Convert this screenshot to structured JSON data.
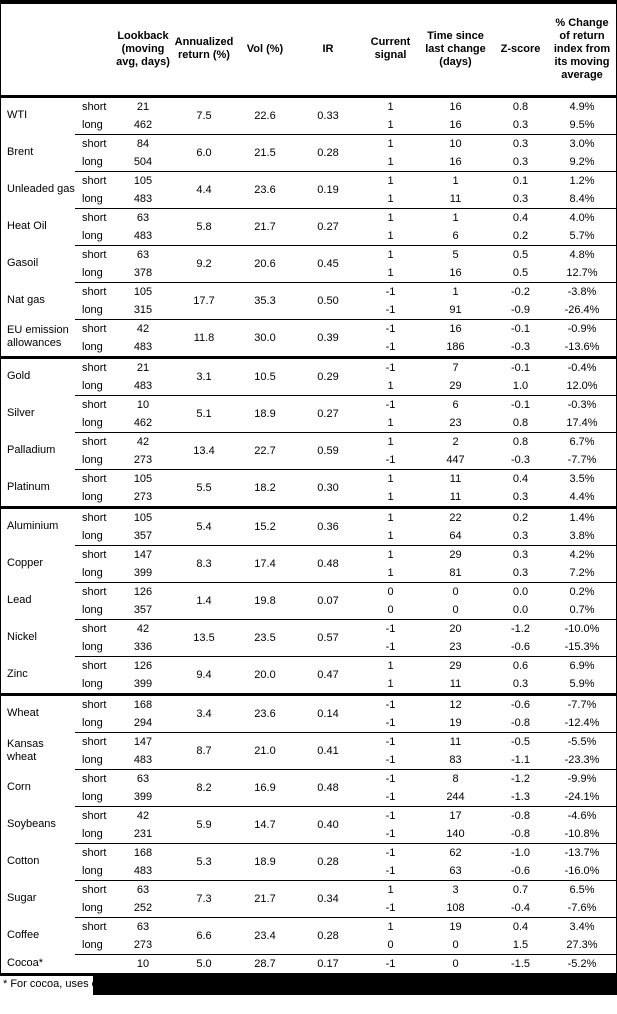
{
  "table": {
    "headers": [
      {
        "id": "commodity",
        "label": ""
      },
      {
        "id": "horizon",
        "label": ""
      },
      {
        "id": "lookback",
        "label": "Lookback (moving avg, days)"
      },
      {
        "id": "annualized-return",
        "label": "Annualized return (%)"
      },
      {
        "id": "vol",
        "label": "Vol (%)"
      },
      {
        "id": "ir",
        "label": "IR"
      },
      {
        "id": "current-signal",
        "label": "Current signal"
      },
      {
        "id": "time-since-last-change",
        "label": "Time since last change (days)"
      },
      {
        "id": "z-score",
        "label": "Z-score"
      },
      {
        "id": "pct-change",
        "label": "% Change of return index from its moving average"
      }
    ],
    "sections": [
      {
        "commodities": [
          {
            "name": "WTI",
            "annualized": "7.5",
            "vol": "22.6",
            "ir": "0.33",
            "rows": [
              {
                "horizon": "short",
                "lookback": "21",
                "signal": "1",
                "days": "16",
                "z": "0.8",
                "change": "4.9%"
              },
              {
                "horizon": "long",
                "lookback": "462",
                "signal": "1",
                "days": "16",
                "z": "0.3",
                "change": "9.5%"
              }
            ]
          },
          {
            "name": "Brent",
            "annualized": "6.0",
            "vol": "21.5",
            "ir": "0.28",
            "rows": [
              {
                "horizon": "short",
                "lookback": "84",
                "signal": "1",
                "days": "10",
                "z": "0.3",
                "change": "3.0%"
              },
              {
                "horizon": "long",
                "lookback": "504",
                "signal": "1",
                "days": "16",
                "z": "0.3",
                "change": "9.2%"
              }
            ]
          },
          {
            "name": "Unleaded gas",
            "annualized": "4.4",
            "vol": "23.6",
            "ir": "0.19",
            "rows": [
              {
                "horizon": "short",
                "lookback": "105",
                "signal": "1",
                "days": "1",
                "z": "0.1",
                "change": "1.2%"
              },
              {
                "horizon": "long",
                "lookback": "483",
                "signal": "1",
                "days": "11",
                "z": "0.3",
                "change": "8.4%"
              }
            ]
          },
          {
            "name": "Heat Oil",
            "annualized": "5.8",
            "vol": "21.7",
            "ir": "0.27",
            "rows": [
              {
                "horizon": "short",
                "lookback": "63",
                "signal": "1",
                "days": "1",
                "z": "0.4",
                "change": "4.0%"
              },
              {
                "horizon": "long",
                "lookback": "483",
                "signal": "1",
                "days": "6",
                "z": "0.2",
                "change": "5.7%"
              }
            ]
          },
          {
            "name": "Gasoil",
            "annualized": "9.2",
            "vol": "20.6",
            "ir": "0.45",
            "rows": [
              {
                "horizon": "short",
                "lookback": "63",
                "signal": "1",
                "days": "5",
                "z": "0.5",
                "change": "4.8%"
              },
              {
                "horizon": "long",
                "lookback": "378",
                "signal": "1",
                "days": "16",
                "z": "0.5",
                "change": "12.7%"
              }
            ]
          },
          {
            "name": "Nat gas",
            "annualized": "17.7",
            "vol": "35.3",
            "ir": "0.50",
            "rows": [
              {
                "horizon": "short",
                "lookback": "105",
                "signal": "-1",
                "days": "1",
                "z": "-0.2",
                "change": "-3.8%"
              },
              {
                "horizon": "long",
                "lookback": "315",
                "signal": "-1",
                "days": "91",
                "z": "-0.9",
                "change": "-26.4%"
              }
            ]
          },
          {
            "name": "EU emission allowances",
            "annualized": "11.8",
            "vol": "30.0",
            "ir": "0.39",
            "rows": [
              {
                "horizon": "short",
                "lookback": "42",
                "signal": "-1",
                "days": "16",
                "z": "-0.1",
                "change": "-0.9%"
              },
              {
                "horizon": "long",
                "lookback": "483",
                "signal": "-1",
                "days": "186",
                "z": "-0.3",
                "change": "-13.6%"
              }
            ]
          }
        ]
      },
      {
        "commodities": [
          {
            "name": "Gold",
            "annualized": "3.1",
            "vol": "10.5",
            "ir": "0.29",
            "rows": [
              {
                "horizon": "short",
                "lookback": "21",
                "signal": "-1",
                "days": "7",
                "z": "-0.1",
                "change": "-0.4%"
              },
              {
                "horizon": "long",
                "lookback": "483",
                "signal": "1",
                "days": "29",
                "z": "1.0",
                "change": "12.0%"
              }
            ]
          },
          {
            "name": "Silver",
            "annualized": "5.1",
            "vol": "18.9",
            "ir": "0.27",
            "rows": [
              {
                "horizon": "short",
                "lookback": "10",
                "signal": "-1",
                "days": "6",
                "z": "-0.1",
                "change": "-0.3%"
              },
              {
                "horizon": "long",
                "lookback": "462",
                "signal": "1",
                "days": "23",
                "z": "0.8",
                "change": "17.4%"
              }
            ]
          },
          {
            "name": "Palladium",
            "annualized": "13.4",
            "vol": "22.7",
            "ir": "0.59",
            "rows": [
              {
                "horizon": "short",
                "lookback": "42",
                "signal": "1",
                "days": "2",
                "z": "0.8",
                "change": "6.7%"
              },
              {
                "horizon": "long",
                "lookback": "273",
                "signal": "-1",
                "days": "447",
                "z": "-0.3",
                "change": "-7.7%"
              }
            ]
          },
          {
            "name": "Platinum",
            "annualized": "5.5",
            "vol": "18.2",
            "ir": "0.30",
            "rows": [
              {
                "horizon": "short",
                "lookback": "105",
                "signal": "1",
                "days": "11",
                "z": "0.4",
                "change": "3.5%"
              },
              {
                "horizon": "long",
                "lookback": "273",
                "signal": "1",
                "days": "11",
                "z": "0.3",
                "change": "4.4%"
              }
            ]
          }
        ]
      },
      {
        "commodities": [
          {
            "name": "Aluminium",
            "annualized": "5.4",
            "vol": "15.2",
            "ir": "0.36",
            "rows": [
              {
                "horizon": "short",
                "lookback": "105",
                "signal": "1",
                "days": "22",
                "z": "0.2",
                "change": "1.4%"
              },
              {
                "horizon": "long",
                "lookback": "357",
                "signal": "1",
                "days": "64",
                "z": "0.3",
                "change": "3.8%"
              }
            ]
          },
          {
            "name": "Copper",
            "annualized": "8.3",
            "vol": "17.4",
            "ir": "0.48",
            "rows": [
              {
                "horizon": "short",
                "lookback": "147",
                "signal": "1",
                "days": "29",
                "z": "0.3",
                "change": "4.2%"
              },
              {
                "horizon": "long",
                "lookback": "399",
                "signal": "1",
                "days": "81",
                "z": "0.3",
                "change": "7.2%"
              }
            ]
          },
          {
            "name": "Lead",
            "annualized": "1.4",
            "vol": "19.8",
            "ir": "0.07",
            "rows": [
              {
                "horizon": "short",
                "lookback": "126",
                "signal": "0",
                "days": "0",
                "z": "0.0",
                "change": "0.2%"
              },
              {
                "horizon": "long",
                "lookback": "357",
                "signal": "0",
                "days": "0",
                "z": "0.0",
                "change": "0.7%"
              }
            ]
          },
          {
            "name": "Nickel",
            "annualized": "13.5",
            "vol": "23.5",
            "ir": "0.57",
            "rows": [
              {
                "horizon": "short",
                "lookback": "42",
                "signal": "-1",
                "days": "20",
                "z": "-1.2",
                "change": "-10.0%"
              },
              {
                "horizon": "long",
                "lookback": "336",
                "signal": "-1",
                "days": "23",
                "z": "-0.6",
                "change": "-15.3%"
              }
            ]
          },
          {
            "name": "Zinc",
            "annualized": "9.4",
            "vol": "20.0",
            "ir": "0.47",
            "rows": [
              {
                "horizon": "short",
                "lookback": "126",
                "signal": "1",
                "days": "29",
                "z": "0.6",
                "change": "6.9%"
              },
              {
                "horizon": "long",
                "lookback": "399",
                "signal": "1",
                "days": "11",
                "z": "0.3",
                "change": "5.9%"
              }
            ]
          }
        ]
      },
      {
        "commodities": [
          {
            "name": "Wheat",
            "annualized": "3.4",
            "vol": "23.6",
            "ir": "0.14",
            "rows": [
              {
                "horizon": "short",
                "lookback": "168",
                "signal": "-1",
                "days": "12",
                "z": "-0.6",
                "change": "-7.7%"
              },
              {
                "horizon": "long",
                "lookback": "294",
                "signal": "-1",
                "days": "19",
                "z": "-0.8",
                "change": "-12.4%"
              }
            ]
          },
          {
            "name": "Kansas wheat",
            "annualized": "8.7",
            "vol": "21.0",
            "ir": "0.41",
            "rows": [
              {
                "horizon": "short",
                "lookback": "147",
                "signal": "-1",
                "days": "11",
                "z": "-0.5",
                "change": "-5.5%"
              },
              {
                "horizon": "long",
                "lookback": "483",
                "signal": "-1",
                "days": "83",
                "z": "-1.1",
                "change": "-23.3%"
              }
            ]
          },
          {
            "name": "Corn",
            "annualized": "8.2",
            "vol": "16.9",
            "ir": "0.48",
            "rows": [
              {
                "horizon": "short",
                "lookback": "63",
                "signal": "-1",
                "days": "8",
                "z": "-1.2",
                "change": "-9.9%"
              },
              {
                "horizon": "long",
                "lookback": "399",
                "signal": "-1",
                "days": "244",
                "z": "-1.3",
                "change": "-24.1%"
              }
            ]
          },
          {
            "name": "Soybeans",
            "annualized": "5.9",
            "vol": "14.7",
            "ir": "0.40",
            "rows": [
              {
                "horizon": "short",
                "lookback": "42",
                "signal": "-1",
                "days": "17",
                "z": "-0.8",
                "change": "-4.6%"
              },
              {
                "horizon": "long",
                "lookback": "231",
                "signal": "-1",
                "days": "140",
                "z": "-0.8",
                "change": "-10.8%"
              }
            ]
          },
          {
            "name": "Cotton",
            "annualized": "5.3",
            "vol": "18.9",
            "ir": "0.28",
            "rows": [
              {
                "horizon": "short",
                "lookback": "168",
                "signal": "-1",
                "days": "62",
                "z": "-1.0",
                "change": "-13.7%"
              },
              {
                "horizon": "long",
                "lookback": "483",
                "signal": "-1",
                "days": "63",
                "z": "-0.6",
                "change": "-16.0%"
              }
            ]
          },
          {
            "name": "Sugar",
            "annualized": "7.3",
            "vol": "21.7",
            "ir": "0.34",
            "rows": [
              {
                "horizon": "short",
                "lookback": "63",
                "signal": "1",
                "days": "3",
                "z": "0.7",
                "change": "6.5%"
              },
              {
                "horizon": "long",
                "lookback": "252",
                "signal": "-1",
                "days": "108",
                "z": "-0.4",
                "change": "-7.6%"
              }
            ]
          },
          {
            "name": "Coffee",
            "annualized": "6.6",
            "vol": "23.4",
            "ir": "0.28",
            "rows": [
              {
                "horizon": "short",
                "lookback": "63",
                "signal": "1",
                "days": "19",
                "z": "0.4",
                "change": "3.4%"
              },
              {
                "horizon": "long",
                "lookback": "273",
                "signal": "0",
                "days": "0",
                "z": "1.5",
                "change": "27.3%"
              }
            ]
          },
          {
            "name": "Cocoa*",
            "annualized": "5.0",
            "vol": "28.7",
            "ir": "0.17",
            "rows": [
              {
                "horizon": "",
                "lookback": "10",
                "signal": "-1",
                "days": "0",
                "z": "-1.5",
                "change": "-5.2%"
              }
            ]
          }
        ]
      }
    ]
  },
  "footnote": {
    "text": "* For cocoa, uses o"
  },
  "colors": {
    "background": "#ffffff",
    "border": "#000000",
    "redaction": "#000000",
    "text": "#000000"
  }
}
